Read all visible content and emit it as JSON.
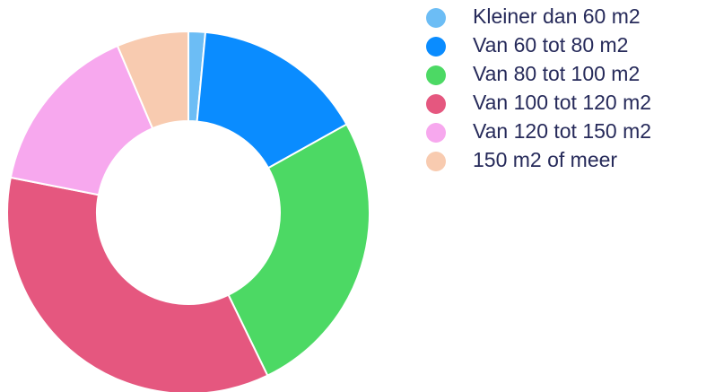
{
  "chart_data": {
    "type": "donut",
    "categories": [
      "Kleiner dan 60 m2",
      "Van 60 tot 80 m2",
      "Van 80 tot 100 m2",
      "Van 100 tot 120 m2",
      "Van 120 tot 150 m2",
      "150 m2 of meer"
    ],
    "values": [
      1.5,
      15.4,
      25.9,
      35.3,
      15.5,
      6.4
    ],
    "colors": [
      "#6cbdf5",
      "#0a8cff",
      "#4cd964",
      "#e5577f",
      "#f7a8ee",
      "#f8cbb0"
    ],
    "legend": "right"
  }
}
